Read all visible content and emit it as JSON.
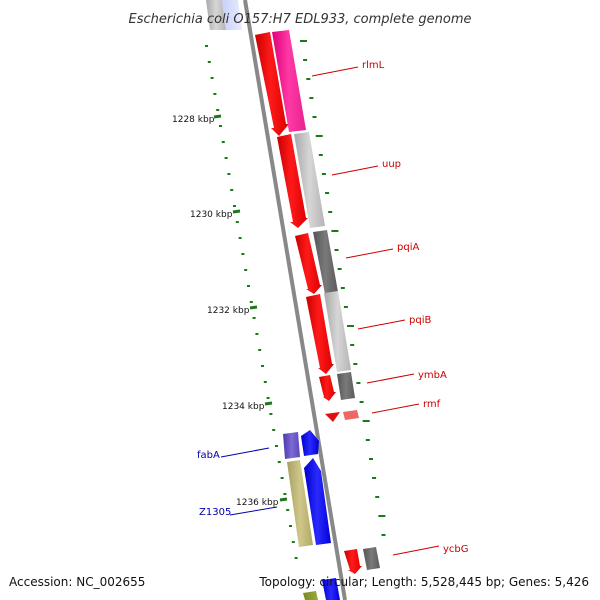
{
  "title": "Escherichia coli O157:H7 EDL933, complete genome",
  "footer": {
    "accession": "Accession: NC_002655",
    "summary": "Topology: circular; Length: 5,528,445 bp; Genes: 5,426"
  },
  "ticks": [
    "1228 kbp",
    "1230 kbp",
    "1232 kbp",
    "1234 kbp",
    "1236 kbp"
  ],
  "genes": [
    {
      "label": "rlmL",
      "color": "#cc0000"
    },
    {
      "label": "uup",
      "color": "#cc0000"
    },
    {
      "label": "pqiA",
      "color": "#cc0000"
    },
    {
      "label": "pqiB",
      "color": "#cc0000"
    },
    {
      "label": "ymbA",
      "color": "#cc0000"
    },
    {
      "label": "rmf",
      "color": "#cc0000"
    },
    {
      "label": "fabA",
      "color": "#0000aa"
    },
    {
      "label": "Z1305",
      "color": "#0000aa"
    },
    {
      "label": "ycbG",
      "color": "#cc0000"
    }
  ],
  "colors": {
    "forward_strand": "#ff0000",
    "reverse_strand": "#0000ff",
    "backbone": "#888888",
    "tick_marks": "#1a7a1a"
  }
}
